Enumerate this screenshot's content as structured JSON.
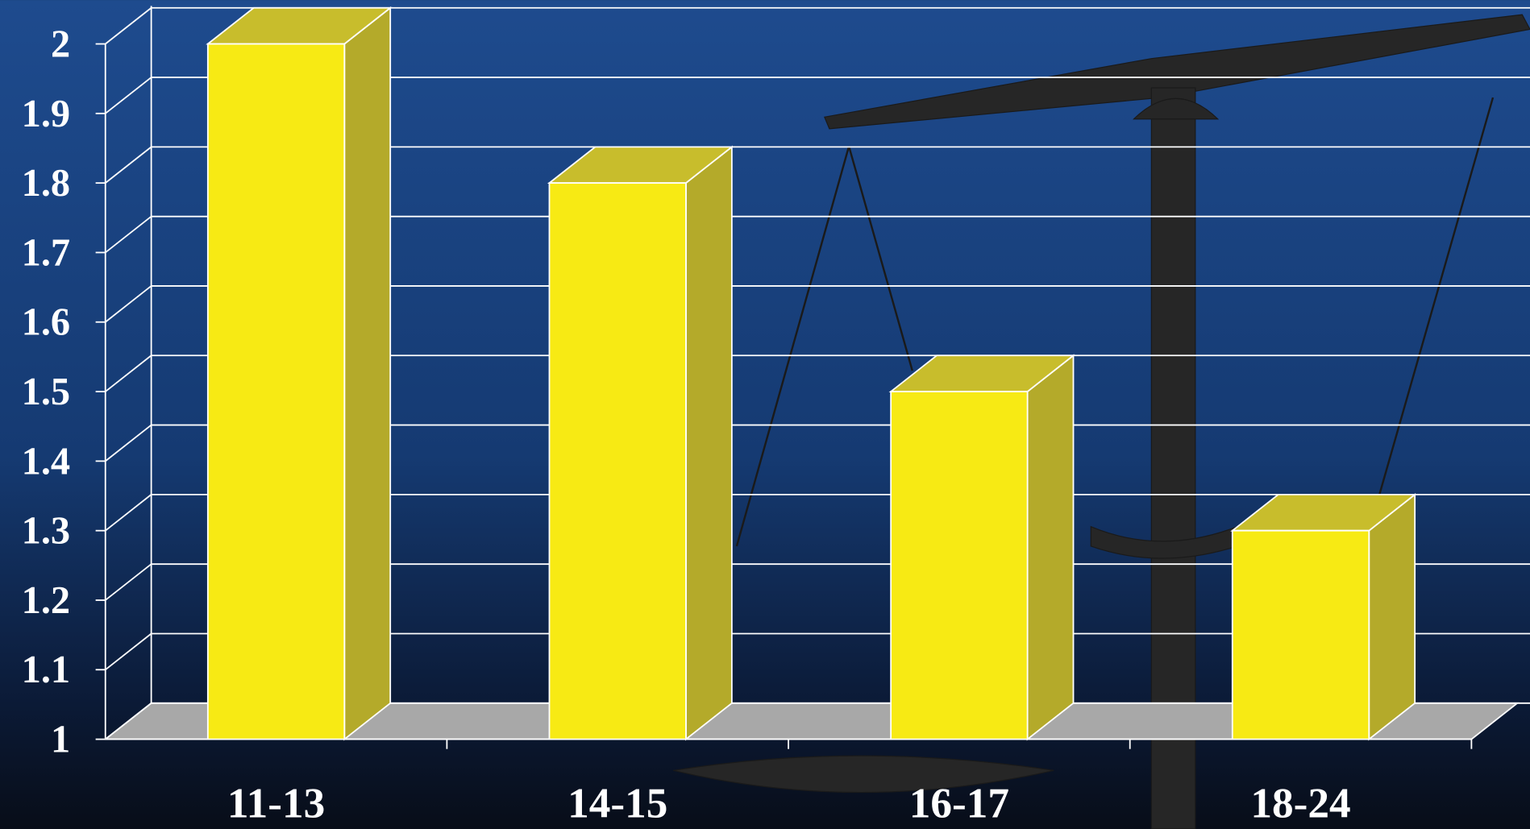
{
  "chart_data": {
    "type": "bar",
    "categories": [
      "11-13",
      "14-15",
      "16-17",
      "18-24"
    ],
    "values": [
      2.0,
      1.8,
      1.5,
      1.3
    ],
    "color": "#f7ea14",
    "ylim": [
      1,
      2
    ],
    "yticks": [
      1,
      1.1,
      1.2,
      1.3,
      1.4,
      1.5,
      1.6,
      1.7,
      1.8,
      1.9,
      2
    ],
    "grid": true
  }
}
